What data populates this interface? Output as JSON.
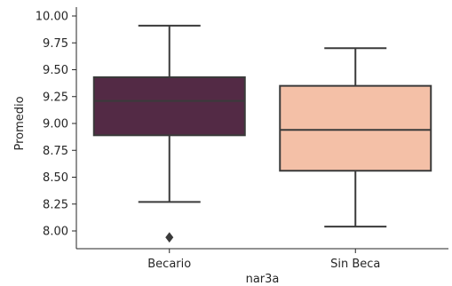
{
  "chart_data": {
    "type": "box",
    "xlabel": "nar3a",
    "ylabel": "Promedio",
    "ylim": [
      7.87,
      10.0
    ],
    "yticks": [
      "8.00",
      "8.25",
      "8.50",
      "8.75",
      "9.00",
      "9.25",
      "9.50",
      "9.75",
      "10.00"
    ],
    "grid": false,
    "categories": [
      "Becario",
      "Sin Beca"
    ],
    "boxes": [
      {
        "category": "Becario",
        "whisker_low": 8.27,
        "q1": 8.89,
        "median": 9.21,
        "q3": 9.43,
        "whisker_high": 9.91,
        "outliers": [
          7.94
        ],
        "color": "#532a45"
      },
      {
        "category": "Sin Beca",
        "whisker_low": 8.04,
        "q1": 8.56,
        "median": 8.94,
        "q3": 9.35,
        "whisker_high": 9.7,
        "outliers": [],
        "color": "#f4c0a7"
      }
    ]
  }
}
